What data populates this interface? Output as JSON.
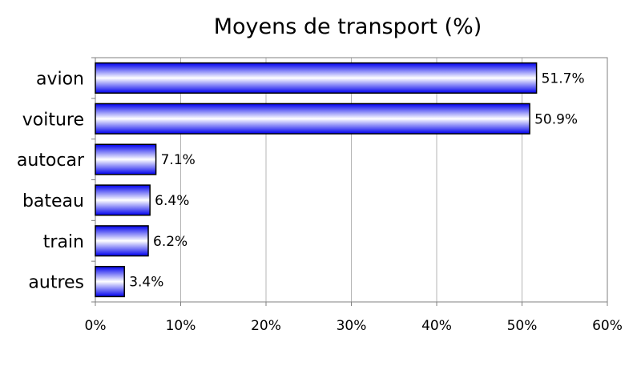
{
  "chart_data": {
    "type": "bar",
    "orientation": "horizontal",
    "title": "Moyens de transport (%)",
    "xlabel": "",
    "ylabel": "",
    "categories": [
      "avion",
      "voiture",
      "autocar",
      "bateau",
      "train",
      "autres"
    ],
    "values": [
      51.7,
      50.9,
      7.1,
      6.4,
      6.2,
      3.4
    ],
    "data_labels": [
      "51.7%",
      "50.9%",
      "7.1%",
      "6.4%",
      "6.2%",
      "3.4%"
    ],
    "xlim": [
      0,
      60
    ],
    "x_ticks": [
      0,
      10,
      20,
      30,
      40,
      50,
      60
    ],
    "x_tick_labels": [
      "0%",
      "10%",
      "20%",
      "30%",
      "40%",
      "50%",
      "60%"
    ],
    "grid": true,
    "legend": "none",
    "colors": {
      "bar_edge": "#0000ee",
      "bar_center": "#ffffff",
      "bar_outline": "#000000",
      "gridline": "#b5b5b5"
    }
  }
}
